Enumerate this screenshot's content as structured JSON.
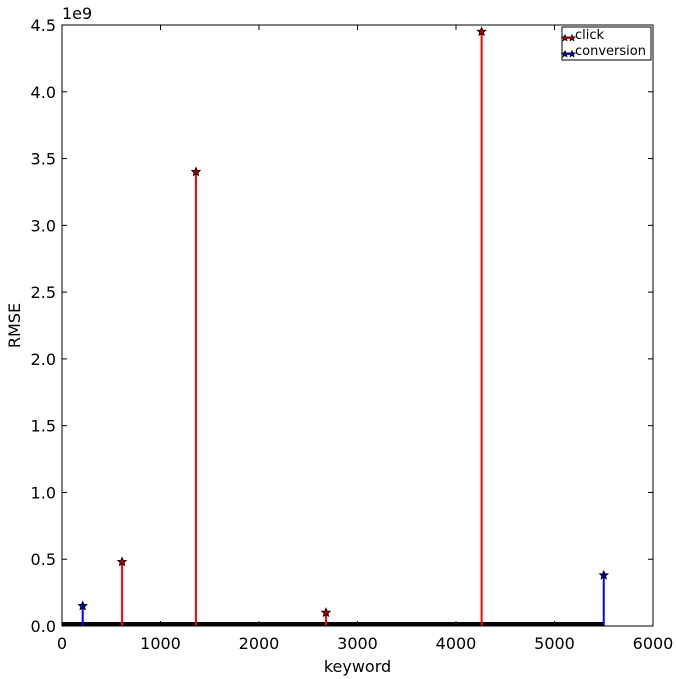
{
  "chart_data": {
    "type": "scatter",
    "style": "stem",
    "xlabel": "keyword",
    "ylabel": "RMSE",
    "offset_text": "1e9",
    "xlim": [
      0,
      6000
    ],
    "ylim": [
      0,
      4.5
    ],
    "x_ticks": [
      0,
      1000,
      2000,
      3000,
      4000,
      5000,
      6000
    ],
    "x_tick_labels": [
      "0",
      "1000",
      "2000",
      "3000",
      "4000",
      "5000",
      "6000"
    ],
    "y_ticks": [
      0,
      0.5,
      1.0,
      1.5,
      2.0,
      2.5,
      3.0,
      3.5,
      4.0,
      4.5
    ],
    "y_tick_labels": [
      "0.0",
      "0.5",
      "1.0",
      "1.5",
      "2.0",
      "2.5",
      "3.0",
      "3.5",
      "4.0",
      "4.5"
    ],
    "grid": false,
    "legend_position": "top-right",
    "baseline_x_range": [
      0,
      5500
    ],
    "series": [
      {
        "name": "click",
        "color": "#ff0000",
        "marker_fill": "#aa0000",
        "marker": "star",
        "points": [
          {
            "x": 610,
            "y": 0.48
          },
          {
            "x": 1360,
            "y": 3.4
          },
          {
            "x": 2680,
            "y": 0.1
          },
          {
            "x": 4260,
            "y": 4.45
          }
        ]
      },
      {
        "name": "conversion",
        "color": "#0000ff",
        "marker_fill": "#0000aa",
        "marker": "star",
        "points": [
          {
            "x": 210,
            "y": 0.15
          },
          {
            "x": 5500,
            "y": 0.38
          }
        ]
      }
    ]
  }
}
